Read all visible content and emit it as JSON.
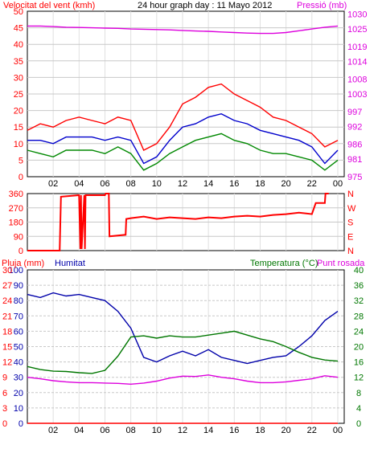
{
  "header": {
    "left_label": "Velocitat del vent (kmh)",
    "center_label": "24 hour graph day : 11 Mayo 2012",
    "right_label": "Pressió (mb)"
  },
  "colors": {
    "wind": "#ff0000",
    "pressure": "#dd00dd",
    "gust": "#ff0000",
    "avg": "#008800",
    "dir_avg": "#0000cc",
    "rain": "#ff0000",
    "humidity": "#0000aa",
    "temp": "#007700",
    "dew": "#dd00dd",
    "grid": "#c8c8c8",
    "vgrid": "#e0e0e0",
    "frame": "#000000"
  },
  "x_ticks": [
    "02",
    "04",
    "06",
    "08",
    "10",
    "12",
    "14",
    "16",
    "18",
    "20",
    "22",
    "00"
  ],
  "chart_data": [
    {
      "type": "line",
      "name": "wind-pressure",
      "left_axis": {
        "label": "Velocitat del vent (kmh)",
        "ylim": [
          0,
          50
        ],
        "ticks": [
          "0",
          "5",
          "10",
          "15",
          "20",
          "25",
          "30",
          "35",
          "40",
          "45",
          "50"
        ]
      },
      "right_axis": {
        "label": "Pressió (mb)",
        "ylim": [
          975,
          1031
        ],
        "ticks": [
          "975",
          "981",
          "986",
          "992",
          "997",
          "1003",
          "1008",
          "1014",
          "1019",
          "1025",
          "1030"
        ]
      },
      "x": [
        0,
        1,
        2,
        3,
        4,
        5,
        6,
        7,
        8,
        9,
        10,
        11,
        12,
        13,
        14,
        15,
        16,
        17,
        18,
        19,
        20,
        21,
        22,
        23,
        24
      ],
      "series": [
        {
          "key": "gust",
          "axis": "left",
          "values": [
            14,
            16,
            15,
            17,
            18,
            17,
            16,
            18,
            17,
            8,
            10,
            15,
            22,
            24,
            27,
            28,
            25,
            23,
            21,
            18,
            17,
            15,
            13,
            9,
            11
          ]
        },
        {
          "key": "dir_avg",
          "axis": "left",
          "values": [
            11,
            11,
            10,
            12,
            12,
            12,
            11,
            12,
            11,
            4,
            6,
            11,
            15,
            16,
            18,
            19,
            17,
            16,
            14,
            13,
            12,
            11,
            9,
            4,
            8
          ]
        },
        {
          "key": "avg",
          "axis": "left",
          "values": [
            8,
            7,
            6,
            8,
            8,
            8,
            7,
            9,
            7,
            2,
            4,
            7,
            9,
            11,
            12,
            13,
            11,
            10,
            8,
            7,
            7,
            6,
            5,
            2,
            5
          ]
        },
        {
          "key": "pressure",
          "axis": "right",
          "values": [
            1026.0,
            1026.0,
            1025.8,
            1025.6,
            1025.5,
            1025.4,
            1025.3,
            1025.2,
            1025.0,
            1024.9,
            1024.8,
            1024.7,
            1024.5,
            1024.3,
            1024.2,
            1024.0,
            1023.8,
            1023.6,
            1023.5,
            1023.5,
            1023.8,
            1024.4,
            1025.0,
            1025.6,
            1026.0
          ]
        }
      ]
    },
    {
      "type": "line",
      "name": "wind-direction",
      "left_axis": {
        "ylim": [
          0,
          360
        ],
        "ticks": [
          "0",
          "90",
          "180",
          "270",
          "360"
        ]
      },
      "right_axis": {
        "ticks": [
          "N",
          "E",
          "S",
          "W",
          "N"
        ]
      },
      "x": [
        0,
        2.5,
        2.6,
        4.0,
        4.1,
        4.15,
        4.2,
        4.4,
        4.45,
        4.5,
        4.6,
        6.0,
        6.05,
        6.3,
        6.35,
        7.6,
        7.65,
        8.0,
        8.5,
        9,
        10,
        11,
        12,
        13,
        14,
        15,
        16,
        17,
        18,
        19,
        20,
        21,
        22,
        22.3,
        23,
        23.05,
        23.3
      ],
      "series": [
        {
          "key": "direction",
          "values": [
            0,
            0,
            340,
            350,
            10,
            350,
            10,
            350,
            10,
            350,
            350,
            350,
            360,
            360,
            90,
            100,
            200,
            205,
            210,
            215,
            200,
            210,
            205,
            200,
            210,
            205,
            215,
            220,
            215,
            225,
            230,
            240,
            230,
            300,
            300,
            360,
            360
          ]
        }
      ]
    },
    {
      "type": "line",
      "name": "rain-humidity-temperature",
      "header": {
        "left_label": "Pluja (mm)",
        "humidity_label": "Humitat",
        "temp_label": "Temperatura (°C)",
        "dew_label": "Punt rosada"
      },
      "left_axis_pct": {
        "ylim": [
          0,
          100
        ],
        "ticks": [
          "0",
          "10",
          "20",
          "30",
          "40",
          "50",
          "60",
          "70",
          "80",
          "90",
          "100"
        ]
      },
      "left_axis_rain": {
        "ticks": [
          "0",
          "3",
          "6",
          "9",
          "12",
          "15",
          "18",
          "21",
          "24",
          "27",
          "30"
        ]
      },
      "right_axis": {
        "ylim": [
          0,
          40
        ],
        "ticks": [
          "0",
          "4",
          "8",
          "12",
          "16",
          "20",
          "24",
          "28",
          "32",
          "36",
          "40"
        ]
      },
      "x": [
        0,
        1,
        2,
        3,
        4,
        5,
        6,
        7,
        8,
        9,
        10,
        11,
        12,
        13,
        14,
        15,
        16,
        17,
        18,
        19,
        20,
        21,
        22,
        23,
        24
      ],
      "series": [
        {
          "key": "rain",
          "axis": "rain",
          "values": [
            0,
            0,
            0,
            0,
            0,
            0,
            0,
            0,
            0,
            0,
            0,
            0,
            0,
            0,
            0,
            0,
            0,
            0,
            0,
            0,
            0,
            0,
            0,
            0,
            0
          ]
        },
        {
          "key": "humidity",
          "axis": "pct",
          "values": [
            84,
            82,
            85,
            83,
            84,
            82,
            80,
            73,
            62,
            43,
            40,
            44,
            47,
            44,
            48,
            43,
            41,
            39,
            41,
            43,
            44,
            50,
            57,
            67,
            73
          ]
        },
        {
          "key": "temp",
          "axis": "right",
          "values": [
            14.8,
            14.0,
            13.6,
            13.5,
            13.2,
            13.0,
            13.8,
            17.5,
            22.5,
            22.8,
            22.2,
            22.8,
            22.5,
            22.5,
            23.0,
            23.5,
            24.0,
            23.0,
            22.0,
            21.3,
            20.0,
            18.5,
            17.2,
            16.5,
            16.2
          ]
        },
        {
          "key": "dew",
          "axis": "right",
          "values": [
            12.0,
            11.6,
            11.1,
            10.8,
            10.6,
            10.6,
            10.5,
            10.4,
            10.2,
            10.5,
            11.0,
            11.8,
            12.3,
            12.2,
            12.6,
            12.0,
            11.6,
            11.0,
            10.6,
            10.6,
            10.8,
            11.2,
            11.6,
            12.4,
            12.0
          ]
        }
      ]
    }
  ]
}
